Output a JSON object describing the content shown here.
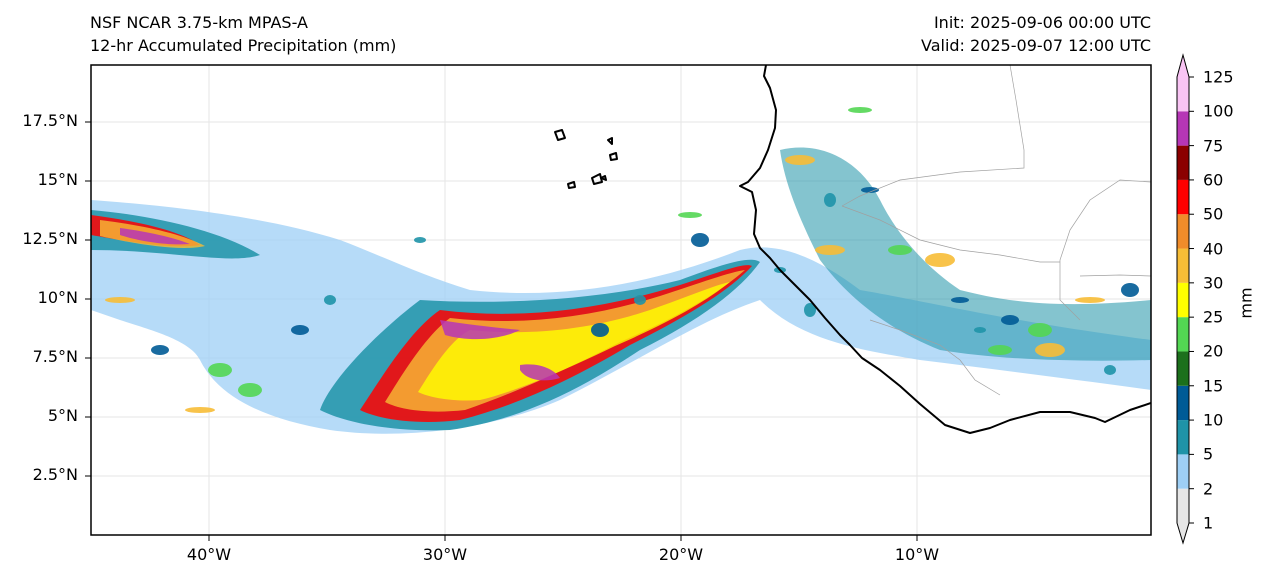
{
  "titles": {
    "model": "NSF NCAR 3.75-km MPAS-A",
    "field": "12-hr Accumulated Precipitation (mm)",
    "init": "Init: 2025-09-06 00:00 UTC",
    "valid": "Valid: 2025-09-07 12:00 UTC"
  },
  "axes": {
    "lat_ticks": [
      "17.5°N",
      "15°N",
      "12.5°N",
      "10°N",
      "7.5°N",
      "5°N",
      "2.5°N"
    ],
    "lon_ticks": [
      "40°W",
      "30°W",
      "20°W",
      "10°W"
    ]
  },
  "colorbar": {
    "unit": "mm",
    "levels": [
      "1",
      "2",
      "5",
      "10",
      "15",
      "20",
      "25",
      "30",
      "40",
      "50",
      "60",
      "75",
      "100",
      "125"
    ],
    "colors": [
      "#e6e6e6",
      "#9ecff5",
      "#1f93a8",
      "#005b96",
      "#1c701c",
      "#53d653",
      "#ffff00",
      "#f7bd36",
      "#f08c2a",
      "#ff0000",
      "#8b0000",
      "#b636b6",
      "#f9c4f4"
    ]
  },
  "colors": {
    "coast": "#000000",
    "border": "#a0a0a0",
    "grid": "#e6e6e6",
    "frame": "#000000"
  }
}
